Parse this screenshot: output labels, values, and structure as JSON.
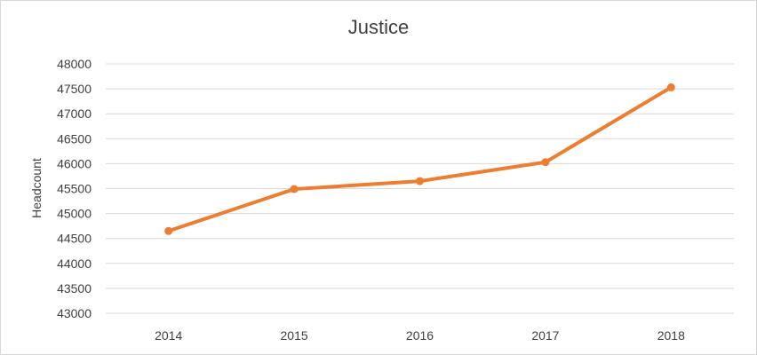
{
  "chart_data": {
    "type": "line",
    "title": "Justice",
    "xlabel": "",
    "ylabel": "Headcount",
    "categories": [
      "2014",
      "2015",
      "2016",
      "2017",
      "2018"
    ],
    "series": [
      {
        "values": [
          44650,
          45490,
          45650,
          46030,
          47530
        ],
        "color": "#ed7d31"
      }
    ],
    "ylim": [
      43000,
      48000
    ],
    "yticks": [
      43000,
      43500,
      44000,
      44500,
      45000,
      45500,
      46000,
      46500,
      47000,
      47500,
      48000
    ],
    "grid": true,
    "legend": "none"
  }
}
